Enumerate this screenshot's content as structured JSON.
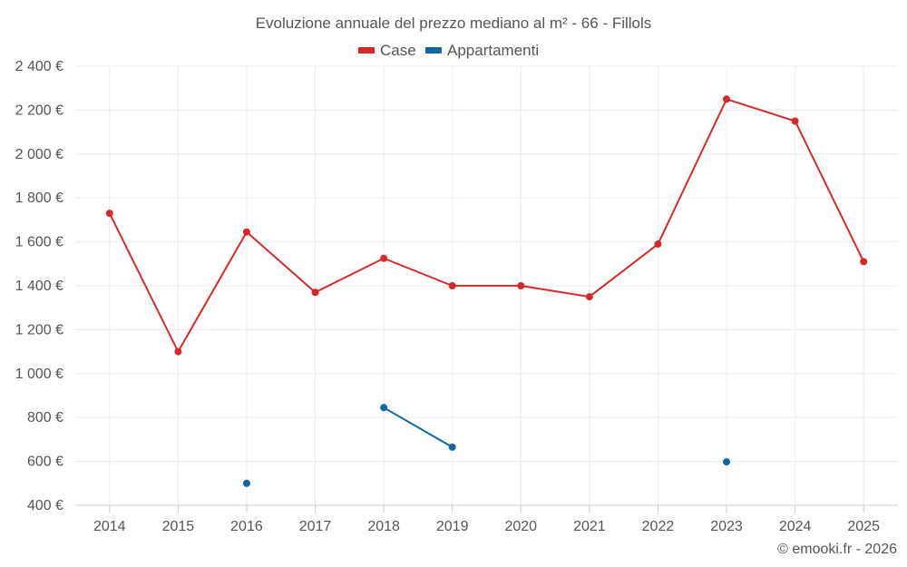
{
  "chart_data": {
    "type": "line",
    "title": "Evoluzione annuale del prezzo mediano al m² - 66 - Fillols",
    "xlabel": "",
    "ylabel": "",
    "categories": [
      "2014",
      "2015",
      "2016",
      "2017",
      "2018",
      "2019",
      "2020",
      "2021",
      "2022",
      "2023",
      "2024",
      "2025"
    ],
    "ylim": [
      400,
      2400
    ],
    "yticks": [
      400,
      600,
      800,
      1000,
      1200,
      1400,
      1600,
      1800,
      2000,
      2200,
      2400
    ],
    "ytick_labels": [
      "400 €",
      "600 €",
      "800 €",
      "1 000 €",
      "1 200 €",
      "1 400 €",
      "1 600 €",
      "1 800 €",
      "2 000 €",
      "2 200 €",
      "2 400 €"
    ],
    "grid": true,
    "legend_position": "top-center",
    "series": [
      {
        "name": "Case",
        "color": "#d62a2a",
        "values": [
          1730,
          1100,
          1645,
          1370,
          1525,
          1400,
          1400,
          1350,
          1590,
          2250,
          2150,
          1510
        ]
      },
      {
        "name": "Appartamenti",
        "color": "#0f66a1",
        "values": [
          null,
          null,
          500,
          null,
          845,
          665,
          null,
          null,
          null,
          598,
          null,
          null
        ]
      }
    ]
  },
  "credit": "© emooki.fr - 2026"
}
